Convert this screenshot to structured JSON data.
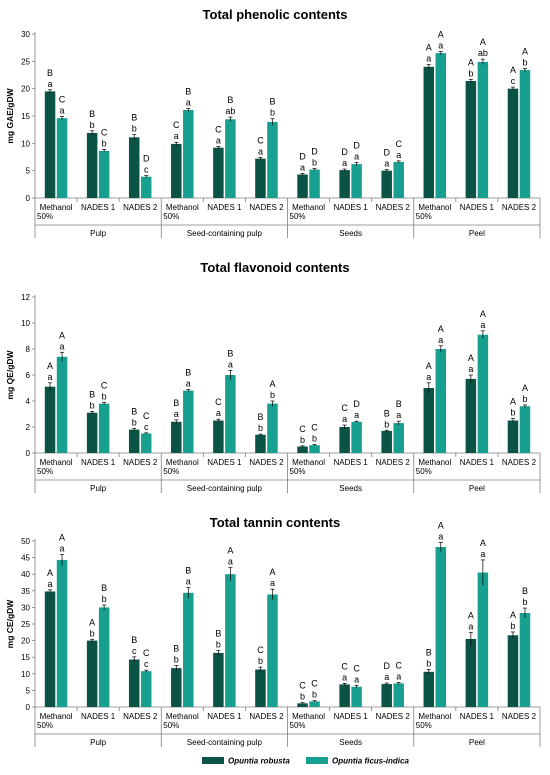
{
  "colors": {
    "series1": "#0b5345",
    "series2": "#17a08f",
    "axis": "#7f7f7f"
  },
  "legend": {
    "series1": "Opuntia robusta",
    "series2": "Opuntia ficus-indica"
  },
  "chart_data": [
    {
      "type": "bar",
      "title": "Total phenolic contents",
      "ylabel": "mg GAE/gDW",
      "ylim": [
        0,
        30
      ],
      "yticks": [
        0,
        5,
        10,
        15,
        20,
        25,
        30
      ],
      "categories": [
        "Methanol 50%",
        "NADES 1",
        "NADES 2",
        "Methanol 50%",
        "NADES 1",
        "NADES 2",
        "Methanol 50%",
        "NADES 1",
        "NADES 2",
        "Methanol 50%",
        "NADES 1",
        "NADES 2"
      ],
      "category_lines": [
        [
          "Methanol",
          "50%"
        ],
        [
          "NADES 1"
        ],
        [
          "NADES 2"
        ],
        [
          "Methanol",
          "50%"
        ],
        [
          "NADES 1"
        ],
        [
          "NADES 2"
        ],
        [
          "Methanol",
          "50%"
        ],
        [
          "NADES 1"
        ],
        [
          "NADES 2"
        ],
        [
          "Methanol",
          "50%"
        ],
        [
          "NADES 1"
        ],
        [
          "NADES 2"
        ]
      ],
      "groups": [
        "Pulp",
        "Seed-containing pulp",
        "Seeds",
        "Peel"
      ],
      "series": [
        {
          "name": "Opuntia robusta",
          "values": [
            19.5,
            11.9,
            11.1,
            9.9,
            9.2,
            7.2,
            4.3,
            5.1,
            5.0,
            24.0,
            21.4,
            20.0
          ],
          "errors": [
            0.3,
            0.4,
            0.5,
            0.3,
            0.2,
            0.2,
            0.2,
            0.2,
            0.2,
            0.4,
            0.3,
            0.3
          ],
          "upper": [
            "B",
            "B",
            "B",
            "C",
            "C",
            "C",
            "D",
            "D",
            "D",
            "A",
            "A",
            "A"
          ],
          "lower": [
            "a",
            "b",
            "b",
            "a",
            "a",
            "a",
            "a",
            "a",
            "a",
            "a",
            "b",
            "c"
          ]
        },
        {
          "name": "Opuntia ficus-indica",
          "values": [
            14.6,
            8.6,
            3.9,
            16.1,
            14.4,
            13.9,
            5.2,
            6.2,
            6.6,
            26.5,
            24.9,
            23.4
          ],
          "errors": [
            0.3,
            0.3,
            0.2,
            0.3,
            0.4,
            0.6,
            0.2,
            0.3,
            0.2,
            0.3,
            0.5,
            0.3
          ],
          "upper": [
            "C",
            "C",
            "D",
            "B",
            "B",
            "B",
            "D",
            "D",
            "C",
            "A",
            "A",
            "A"
          ],
          "lower": [
            "a",
            "b",
            "c",
            "a",
            "ab",
            "b",
            "b",
            "a",
            "a",
            "a",
            "ab",
            "b"
          ]
        }
      ]
    },
    {
      "type": "bar",
      "title": "Total flavonoid contents",
      "ylabel": "mg QE/gDW",
      "ylim": [
        0,
        12
      ],
      "yticks": [
        0,
        2,
        4,
        6,
        8,
        10,
        12
      ],
      "categories": [
        "Methanol 50%",
        "NADES 1",
        "NADES 2",
        "Methanol 50%",
        "NADES 1",
        "NADES 2",
        "Methanol 50%",
        "NADES 1",
        "NADES 2",
        "Methanol 50%",
        "NADES 1",
        "NADES 2"
      ],
      "category_lines": [
        [
          "Methanol",
          "50%"
        ],
        [
          "NADES 1"
        ],
        [
          "NADES 2"
        ],
        [
          "Methanol",
          "50%"
        ],
        [
          "NADES 1"
        ],
        [
          "NADES 2"
        ],
        [
          "Methanol",
          "50%"
        ],
        [
          "NADES 1"
        ],
        [
          "NADES 2"
        ],
        [
          "Methanol",
          "50%"
        ],
        [
          "NADES 1"
        ],
        [
          "NADES 2"
        ]
      ],
      "groups": [
        "Pulp",
        "Seed-containing pulp",
        "Seeds",
        "Peel"
      ],
      "series": [
        {
          "name": "Opuntia robusta",
          "values": [
            5.1,
            3.1,
            1.8,
            2.4,
            2.5,
            1.4,
            0.5,
            2.0,
            1.7,
            5.0,
            5.7,
            2.5
          ],
          "errors": [
            0.3,
            0.1,
            0.1,
            0.15,
            0.1,
            0.05,
            0.05,
            0.15,
            0.05,
            0.4,
            0.3,
            0.15
          ],
          "upper": [
            "A",
            "B",
            "B",
            "B",
            "C",
            "B",
            "C",
            "C",
            "B",
            "A",
            "A",
            "A"
          ],
          "lower": [
            "a",
            "b",
            "b",
            "a",
            "a",
            "b",
            "b",
            "a",
            "b",
            "a",
            "a",
            "b"
          ]
        },
        {
          "name": "Opuntia ficus-indica",
          "values": [
            7.4,
            3.8,
            1.5,
            4.8,
            6.0,
            3.8,
            0.6,
            2.4,
            2.3,
            8.0,
            9.1,
            3.6
          ],
          "errors": [
            0.35,
            0.1,
            0.05,
            0.1,
            0.35,
            0.2,
            0.05,
            0.05,
            0.15,
            0.25,
            0.3,
            0.1
          ],
          "upper": [
            "A",
            "C",
            "C",
            "B",
            "B",
            "A",
            "C",
            "D",
            "B",
            "A",
            "A",
            "A"
          ],
          "lower": [
            "a",
            "b",
            "c",
            "a",
            "a",
            "b",
            "b",
            "a",
            "a",
            "a",
            "a",
            "b"
          ]
        }
      ]
    },
    {
      "type": "bar",
      "title": "Total tannin contents",
      "ylabel": "mg CE/gDW",
      "ylim": [
        0,
        50
      ],
      "yticks": [
        0,
        5,
        10,
        15,
        20,
        25,
        30,
        35,
        40,
        45,
        50
      ],
      "categories": [
        "Methanol 50%",
        "NADES 1",
        "NADES 2",
        "Methanol 50%",
        "NADES 1",
        "NADES 2",
        "Methanol 50%",
        "NADES 1",
        "NADES 2",
        "Methanol 50%",
        "NADES 1",
        "NADES 2"
      ],
      "category_lines": [
        [
          "Methanol",
          "50%"
        ],
        [
          "NADES 1"
        ],
        [
          "NADES 2"
        ],
        [
          "Methanol",
          "50%"
        ],
        [
          "NADES 1"
        ],
        [
          "NADES 2"
        ],
        [
          "Methanol",
          "50%"
        ],
        [
          "NADES 1"
        ],
        [
          "NADES 2"
        ],
        [
          "Methanol",
          "50%"
        ],
        [
          "NADES 1"
        ],
        [
          "NADES 2"
        ]
      ],
      "groups": [
        "Pulp",
        "Seed-containing pulp",
        "Seeds",
        "Peel"
      ],
      "series": [
        {
          "name": "Opuntia robusta",
          "values": [
            34.8,
            20.0,
            14.3,
            11.7,
            16.3,
            11.3,
            1.1,
            6.8,
            6.9,
            10.6,
            20.5,
            21.6
          ],
          "errors": [
            0.5,
            0.4,
            0.8,
            0.8,
            0.7,
            0.7,
            0.2,
            0.3,
            0.3,
            0.7,
            2.0,
            1.0
          ],
          "upper": [
            "A",
            "A",
            "B",
            "B",
            "B",
            "C",
            "C",
            "C",
            "D",
            "B",
            "A",
            "A"
          ],
          "lower": [
            "a",
            "b",
            "c",
            "b",
            "b",
            "b",
            "b",
            "a",
            "a",
            "b",
            "a",
            "b"
          ]
        },
        {
          "name": "Opuntia ficus-indica",
          "values": [
            44.3,
            30.0,
            10.8,
            34.4,
            40.0,
            33.9,
            1.7,
            6.1,
            7.1,
            48.2,
            40.5,
            28.3
          ],
          "errors": [
            1.6,
            0.7,
            0.3,
            1.6,
            2.0,
            1.6,
            0.2,
            0.4,
            0.3,
            1.4,
            3.8,
            1.5
          ],
          "upper": [
            "A",
            "B",
            "C",
            "B",
            "A",
            "A",
            "C",
            "C",
            "C",
            "A",
            "A",
            "B"
          ],
          "lower": [
            "a",
            "b",
            "c",
            "a",
            "a",
            "a",
            "b",
            "a",
            "a",
            "a",
            "a",
            "b"
          ]
        }
      ]
    }
  ]
}
